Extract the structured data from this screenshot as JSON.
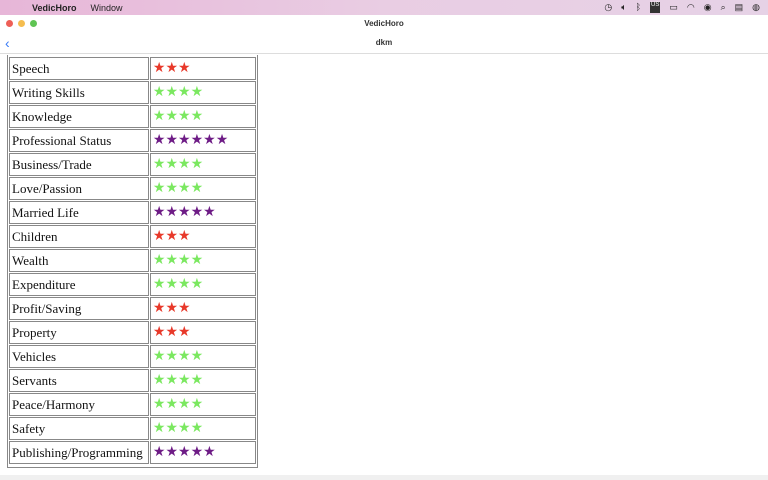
{
  "menubar": {
    "app": "VedicHoro",
    "menu": "Window",
    "status_icons": [
      "clock-icon",
      "volume-icon",
      "bluetooth-icon",
      "input-us-icon",
      "battery-icon",
      "wifi-icon",
      "user-icon",
      "search-icon",
      "control-center-icon",
      "siri-icon"
    ],
    "input_label": "US"
  },
  "window": {
    "title": "VedicHoro"
  },
  "nav": {
    "title": "dkm",
    "back": "‹"
  },
  "colors": {
    "red": "#e8392a",
    "green": "#7be860",
    "purple": "#6e1c86"
  },
  "rows": [
    {
      "label": "Speech",
      "stars": 3,
      "color": "red"
    },
    {
      "label": "Writing Skills",
      "stars": 4,
      "color": "green"
    },
    {
      "label": "Knowledge",
      "stars": 4,
      "color": "green"
    },
    {
      "label": "Professional Status",
      "stars": 6,
      "color": "purple"
    },
    {
      "label": "Business/Trade",
      "stars": 4,
      "color": "green"
    },
    {
      "label": "Love/Passion",
      "stars": 4,
      "color": "green"
    },
    {
      "label": "Married Life",
      "stars": 5,
      "color": "purple"
    },
    {
      "label": "Children",
      "stars": 3,
      "color": "red"
    },
    {
      "label": "Wealth",
      "stars": 4,
      "color": "green"
    },
    {
      "label": "Expenditure",
      "stars": 4,
      "color": "green"
    },
    {
      "label": "Profit/Saving",
      "stars": 3,
      "color": "red"
    },
    {
      "label": "Property",
      "stars": 3,
      "color": "red"
    },
    {
      "label": "Vehicles",
      "stars": 4,
      "color": "green"
    },
    {
      "label": "Servants",
      "stars": 4,
      "color": "green"
    },
    {
      "label": "Peace/Harmony",
      "stars": 4,
      "color": "green"
    },
    {
      "label": "Safety",
      "stars": 4,
      "color": "green"
    },
    {
      "label": "Publishing/Programming",
      "stars": 5,
      "color": "purple"
    }
  ]
}
